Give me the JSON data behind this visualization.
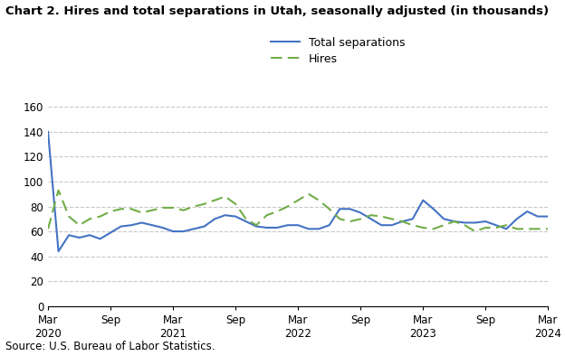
{
  "title": "Chart 2. Hires and total separations in Utah, seasonally adjusted (in thousands)",
  "source": "Source: U.S. Bureau of Labor Statistics.",
  "ylim": [
    0,
    160
  ],
  "yticks": [
    0,
    20,
    40,
    60,
    80,
    100,
    120,
    140,
    160
  ],
  "xtick_positions": [
    0,
    6,
    12,
    18,
    24,
    30,
    36,
    42,
    48
  ],
  "xtick_labels": [
    "Mar\n2020",
    "Sep",
    "Mar\n2021",
    "Sep",
    "Mar\n2022",
    "Sep",
    "Mar\n2023",
    "Sep",
    "Mar\n2024"
  ],
  "total_separations": [
    140,
    44,
    57,
    55,
    57,
    54,
    59,
    64,
    65,
    67,
    65,
    63,
    60,
    60,
    62,
    64,
    70,
    73,
    72,
    68,
    64,
    63,
    63,
    65,
    65,
    62,
    62,
    65,
    78,
    78,
    75,
    70,
    65,
    65,
    68,
    70,
    85,
    78,
    70,
    68,
    67,
    67,
    68,
    65,
    62,
    70,
    76,
    72,
    72
  ],
  "hires": [
    62,
    93,
    72,
    65,
    70,
    72,
    76,
    78,
    78,
    75,
    77,
    79,
    79,
    77,
    80,
    82,
    85,
    88,
    82,
    70,
    65,
    73,
    76,
    80,
    85,
    90,
    85,
    78,
    70,
    68,
    70,
    73,
    72,
    70,
    68,
    65,
    63,
    62,
    65,
    68,
    65,
    60,
    63,
    63,
    65,
    62,
    62,
    62,
    62
  ],
  "sep_color": "#4472C4",
  "hires_color": "#70AD47",
  "background_color": "#FFFFFF",
  "grid_color": "#C8C8C8",
  "fig_width": 6.24,
  "fig_height": 3.94,
  "dpi": 100,
  "title_fontsize": 9.5,
  "tick_fontsize": 8.5,
  "legend_fontsize": 9.0,
  "source_fontsize": 8.5
}
